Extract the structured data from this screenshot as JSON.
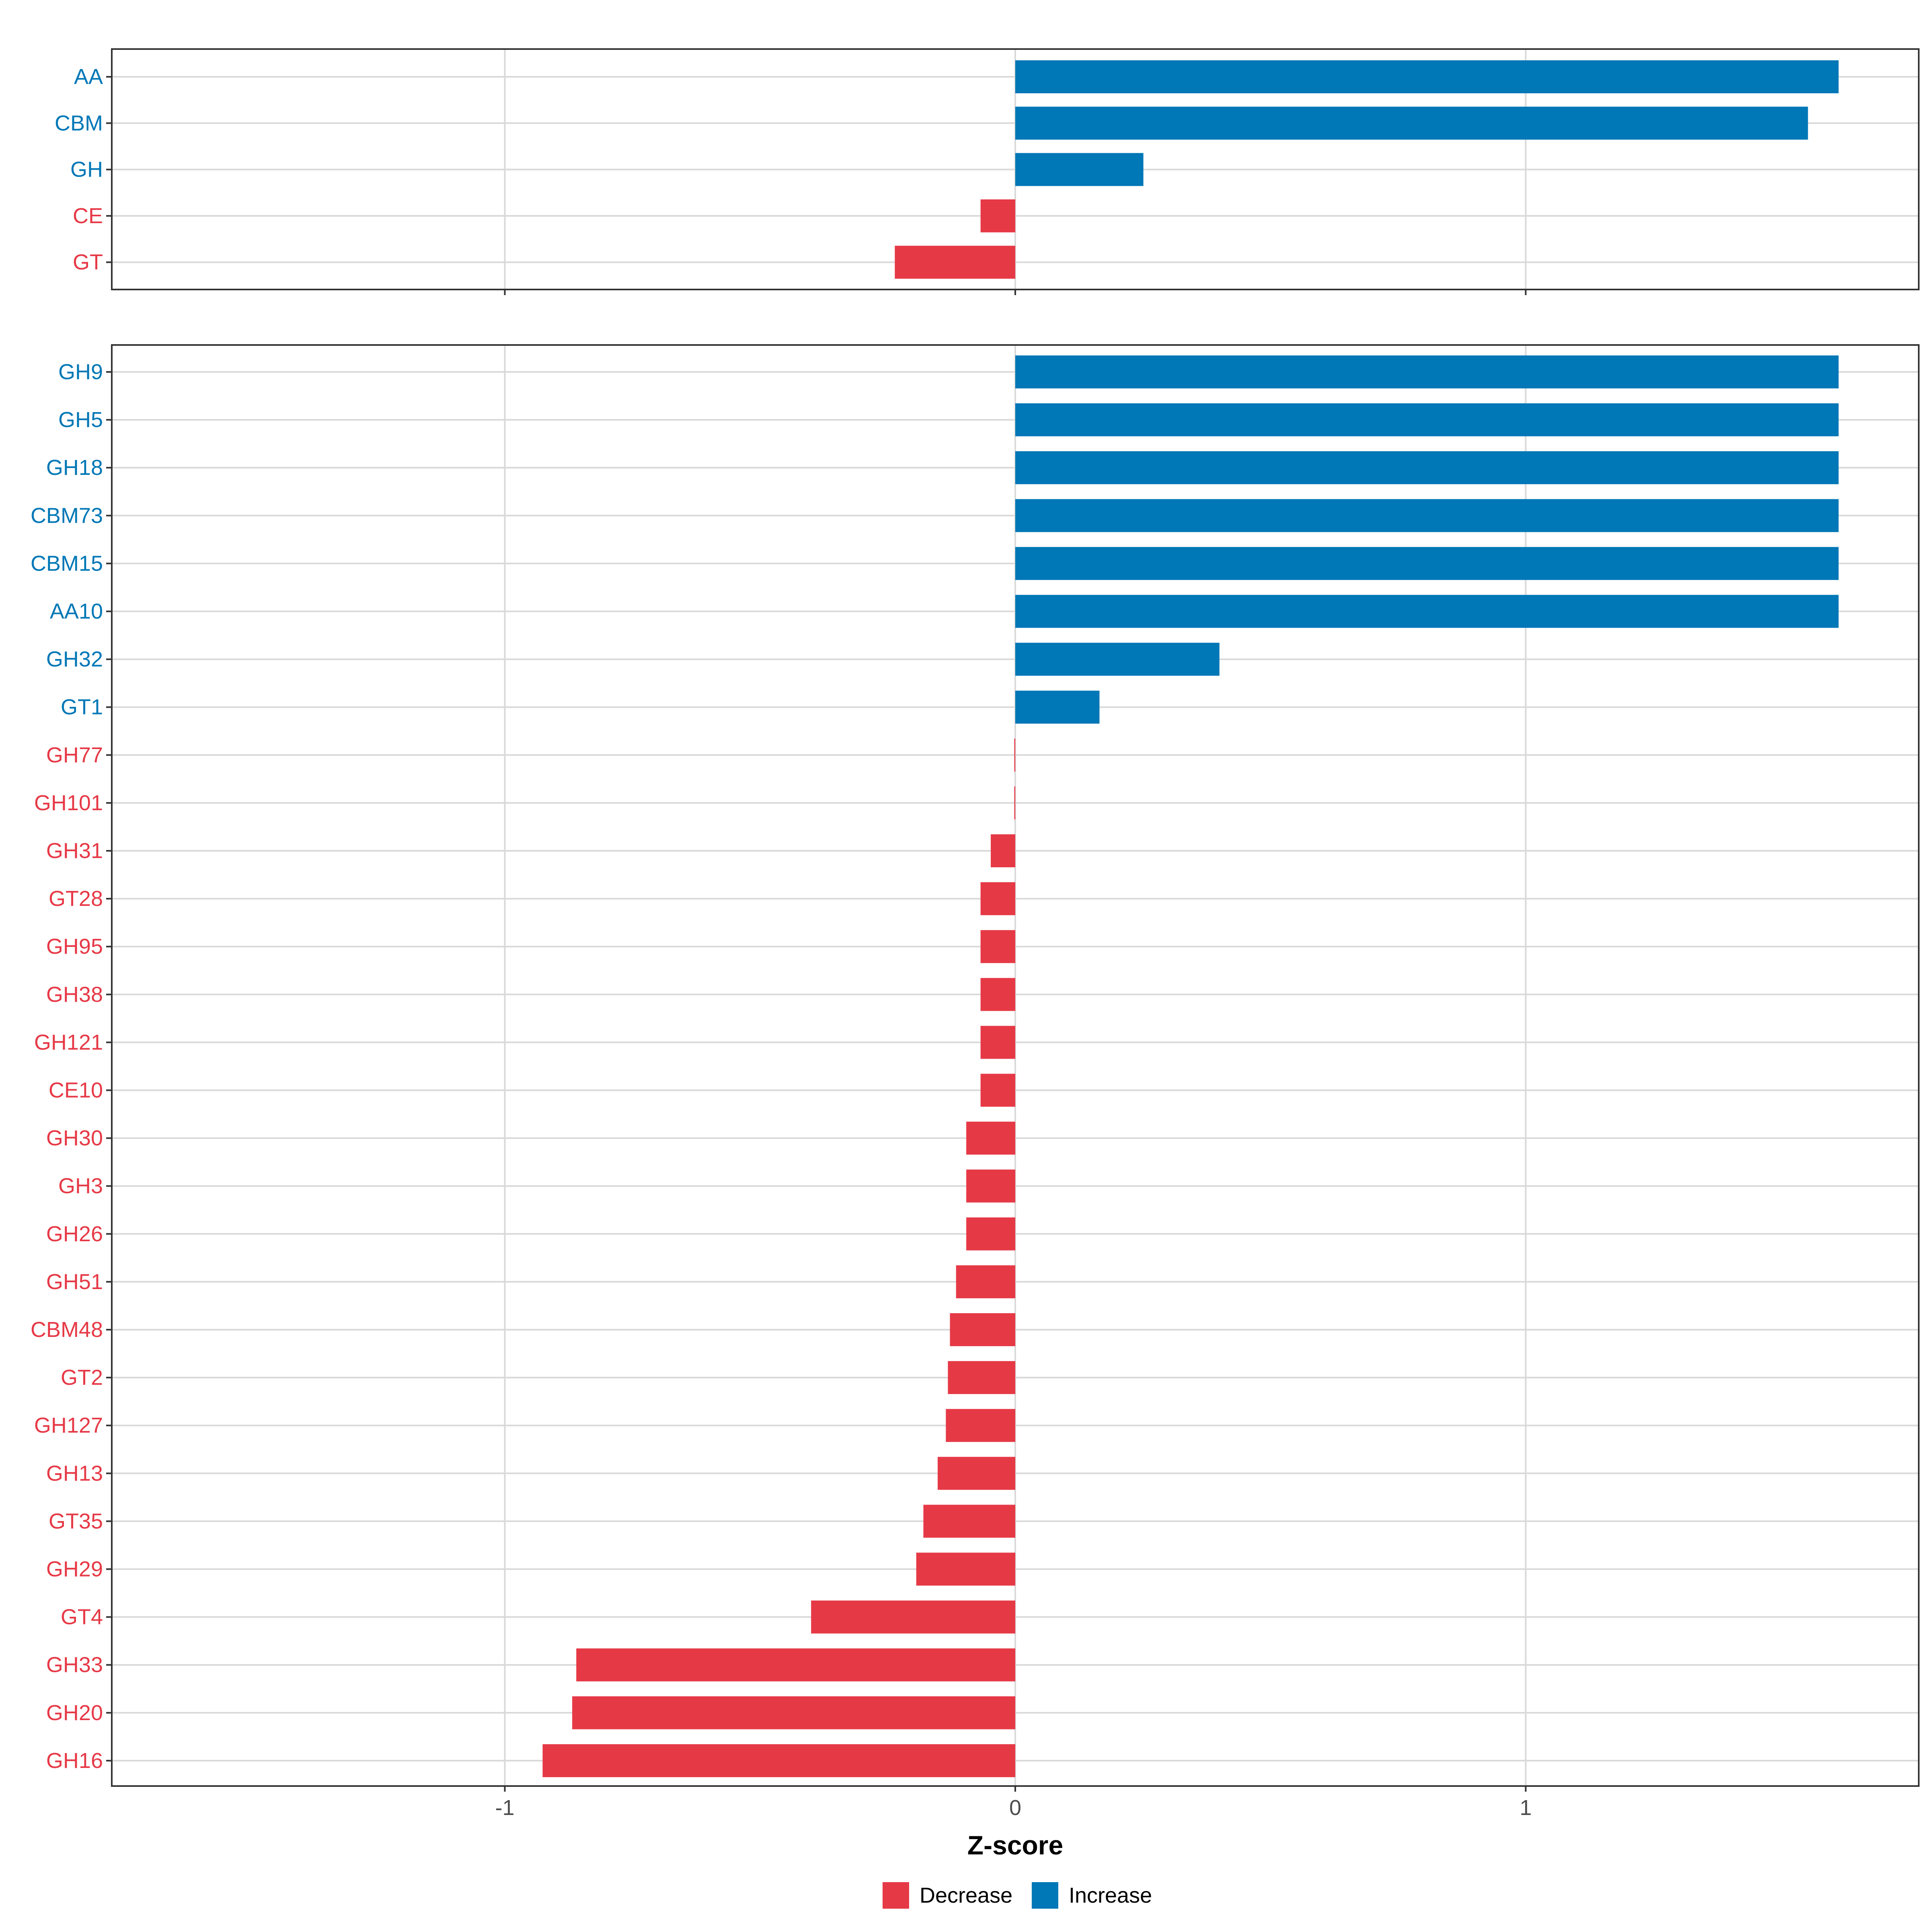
{
  "colors": {
    "decrease": "#e63946",
    "increase": "#0077b6",
    "grid": "#d9d9d9",
    "panel_border": "#333333",
    "tick_text": "#4d4d4d"
  },
  "chart_data": [
    {
      "type": "bar",
      "orientation": "horizontal",
      "panel": "top",
      "categories": [
        "AA",
        "CBM",
        "GH",
        "CE",
        "GT"
      ],
      "values": [
        1.613,
        1.553,
        0.251,
        -0.068,
        -0.236
      ],
      "groups": [
        "Increase",
        "Increase",
        "Increase",
        "Decrease",
        "Decrease"
      ],
      "xlim": [
        -1.77,
        1.77
      ],
      "grid": true
    },
    {
      "type": "bar",
      "orientation": "horizontal",
      "panel": "bottom",
      "categories": [
        "GH9",
        "GH5",
        "GH18",
        "CBM73",
        "CBM15",
        "AA10",
        "GH32",
        "GT1",
        "GH77",
        "GH101",
        "GH31",
        "GT28",
        "GH95",
        "GH38",
        "GH121",
        "CE10",
        "GH30",
        "GH3",
        "GH26",
        "GH51",
        "CBM48",
        "GT2",
        "GH127",
        "GH13",
        "GT35",
        "GH29",
        "GT4",
        "GH33",
        "GH20",
        "GH16"
      ],
      "values": [
        1.613,
        1.613,
        1.613,
        1.613,
        1.613,
        1.613,
        0.4,
        0.165,
        -0.002,
        -0.002,
        -0.048,
        -0.068,
        -0.068,
        -0.068,
        -0.068,
        -0.068,
        -0.096,
        -0.096,
        -0.096,
        -0.116,
        -0.128,
        -0.132,
        -0.136,
        -0.152,
        -0.18,
        -0.194,
        -0.4,
        -0.86,
        -0.868,
        -0.926
      ],
      "groups": [
        "Increase",
        "Increase",
        "Increase",
        "Increase",
        "Increase",
        "Increase",
        "Increase",
        "Increase",
        "Decrease",
        "Decrease",
        "Decrease",
        "Decrease",
        "Decrease",
        "Decrease",
        "Decrease",
        "Decrease",
        "Decrease",
        "Decrease",
        "Decrease",
        "Decrease",
        "Decrease",
        "Decrease",
        "Decrease",
        "Decrease",
        "Decrease",
        "Decrease",
        "Decrease",
        "Decrease",
        "Decrease",
        "Decrease"
      ],
      "xlim": [
        -1.77,
        1.77
      ],
      "grid": true
    }
  ],
  "x_axis": {
    "ticks": [
      -1,
      0,
      1
    ],
    "tick_labels": [
      "-1",
      "0",
      "1"
    ],
    "title": "Z-score"
  },
  "legend": {
    "position": "bottom",
    "entries": [
      {
        "label": "Decrease",
        "color_key": "decrease"
      },
      {
        "label": "Increase",
        "color_key": "increase"
      }
    ]
  }
}
